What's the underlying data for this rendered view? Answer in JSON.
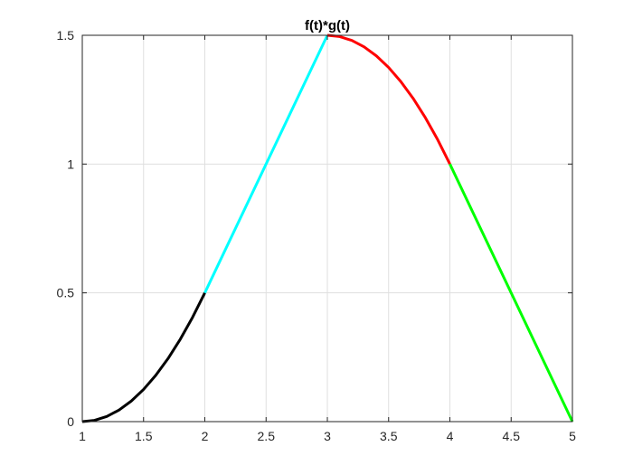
{
  "chart_data": {
    "type": "line",
    "title": "f(t)*g(t)",
    "xlabel": "",
    "ylabel": "",
    "xlim": [
      1,
      5
    ],
    "ylim": [
      0,
      1.5
    ],
    "grid": true,
    "x_ticks": [
      "1",
      "1.5",
      "2",
      "2.5",
      "3",
      "3.5",
      "4",
      "4.5",
      "5"
    ],
    "y_ticks": [
      "0",
      "0.5",
      "1",
      "1.5"
    ],
    "series": [
      {
        "color": "#000000",
        "x": [
          1.0,
          1.1,
          1.2,
          1.3,
          1.4,
          1.5,
          1.6,
          1.7,
          1.8,
          1.9,
          2.0
        ],
        "y": [
          0.0,
          0.005,
          0.02,
          0.045,
          0.08,
          0.125,
          0.18,
          0.245,
          0.32,
          0.405,
          0.5
        ]
      },
      {
        "color": "#00ffff",
        "x": [
          2.0,
          3.0
        ],
        "y": [
          0.5,
          1.5
        ]
      },
      {
        "color": "#ff0000",
        "x": [
          3.0,
          3.1,
          3.2,
          3.3,
          3.4,
          3.5,
          3.6,
          3.7,
          3.8,
          3.9,
          4.0
        ],
        "y": [
          1.5,
          1.495,
          1.48,
          1.455,
          1.42,
          1.375,
          1.32,
          1.255,
          1.18,
          1.095,
          1.0
        ]
      },
      {
        "color": "#00ff00",
        "x": [
          4.0,
          5.0
        ],
        "y": [
          1.0,
          0.0
        ]
      }
    ]
  }
}
